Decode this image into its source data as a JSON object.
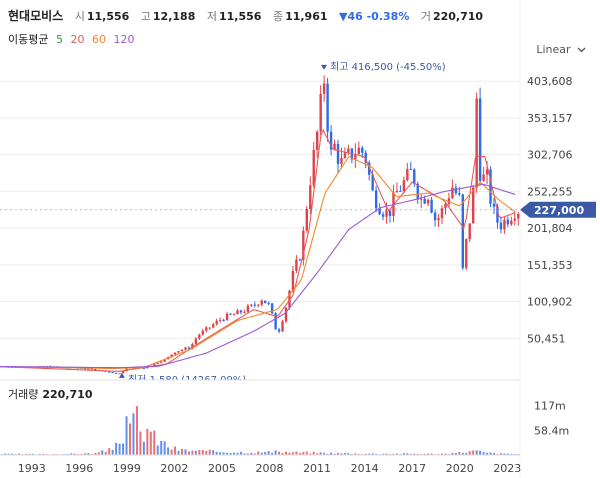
{
  "header": {
    "name": "현대모비스",
    "open_label": "시",
    "open": "11,556",
    "high_label": "고",
    "high": "12,188",
    "low_label": "저",
    "low": "11,556",
    "close_label": "종",
    "close": "11,961",
    "change": "▼46 -0.38%",
    "volume_label": "거",
    "volume": "220,710"
  },
  "ma_legend": {
    "label": "이동평균",
    "items": [
      {
        "text": "5",
        "color": "#2e9e3e"
      },
      {
        "text": "20",
        "color": "#e85a5a"
      },
      {
        "text": "60",
        "color": "#f08a2a"
      },
      {
        "text": "120",
        "color": "#9b59d6"
      }
    ]
  },
  "scale_button": "Linear",
  "volume_panel": {
    "label": "거래량",
    "value": "220,710"
  },
  "colors": {
    "up": "#e0424b",
    "down": "#2f6be6",
    "price_tag": "#3b5aa6",
    "annot": "#3b5aa6"
  },
  "chart_data": [
    {
      "type": "candlestick",
      "ylim": [
        0,
        430000
      ],
      "y_ticks": [
        50451,
        100902,
        151353,
        201804,
        252255,
        302706,
        353157,
        403608
      ],
      "y_tick_labels": [
        "50,451",
        "100,902",
        "151,353",
        "201,804",
        "252,255",
        "302,706",
        "353,157",
        "403,608"
      ],
      "x_ticks": [
        "1993",
        "1996",
        "1999",
        "2002",
        "2005",
        "2008",
        "2011",
        "2014",
        "2017",
        "2020",
        "2023"
      ],
      "x_tick_positions": [
        1993,
        1996,
        1999,
        2002,
        2005,
        2008,
        2011,
        2014,
        2017,
        2020,
        2023
      ],
      "x_range": [
        1991.0,
        2023.8
      ],
      "current_price": 227000,
      "current_price_label": "227,000",
      "max_annotation": {
        "text": "최고",
        "value_text": "416,500 (-45.50%)",
        "x": 2011.5,
        "y": 416500
      },
      "min_annotation": {
        "text": "최저",
        "value_text": "1,580 (14267.09%)",
        "x": 1998.5,
        "y": 1580
      },
      "price_series": [
        [
          1991.0,
          11800
        ],
        [
          1992.0,
          11000
        ],
        [
          1993.0,
          11300
        ],
        [
          1994.0,
          12000
        ],
        [
          1995.0,
          10500
        ],
        [
          1996.0,
          9800
        ],
        [
          1997.0,
          7500
        ],
        [
          1998.0,
          3500
        ],
        [
          1998.5,
          1580
        ],
        [
          1999.0,
          9000
        ],
        [
          1999.5,
          12000
        ],
        [
          2000.0,
          8500
        ],
        [
          2001.0,
          18000
        ],
        [
          2001.5,
          22000
        ],
        [
          2002.0,
          32000
        ],
        [
          2003.0,
          38000
        ],
        [
          2003.5,
          55000
        ],
        [
          2004.0,
          62000
        ],
        [
          2005.0,
          78000
        ],
        [
          2006.0,
          85000
        ],
        [
          2007.0,
          95000
        ],
        [
          2007.5,
          105000
        ],
        [
          2008.0,
          95000
        ],
        [
          2008.5,
          55000
        ],
        [
          2009.0,
          90000
        ],
        [
          2009.5,
          140000
        ],
        [
          2010.0,
          170000
        ],
        [
          2010.5,
          260000
        ],
        [
          2011.0,
          330000
        ],
        [
          2011.5,
          416500
        ],
        [
          2011.8,
          290000
        ],
        [
          2012.0,
          320000
        ],
        [
          2012.5,
          290000
        ],
        [
          2013.0,
          300000
        ],
        [
          2013.5,
          310000
        ],
        [
          2014.0,
          305000
        ],
        [
          2014.5,
          250000
        ],
        [
          2015.0,
          230000
        ],
        [
          2015.5,
          220000
        ],
        [
          2016.0,
          250000
        ],
        [
          2016.5,
          265000
        ],
        [
          2017.0,
          280000
        ],
        [
          2017.5,
          240000
        ],
        [
          2018.0,
          250000
        ],
        [
          2018.5,
          210000
        ],
        [
          2019.0,
          230000
        ],
        [
          2019.5,
          260000
        ],
        [
          2020.0,
          240000
        ],
        [
          2020.2,
          140000
        ],
        [
          2020.5,
          200000
        ],
        [
          2020.8,
          230000
        ],
        [
          2021.0,
          320000
        ],
        [
          2021.1,
          410000
        ],
        [
          2021.3,
          270000
        ],
        [
          2021.8,
          270000
        ],
        [
          2022.0,
          230000
        ],
        [
          2022.5,
          205000
        ],
        [
          2023.0,
          215000
        ],
        [
          2023.5,
          227000
        ]
      ],
      "ma_series": [
        {
          "name": "20",
          "color": "#e85a5a",
          "points": [
            [
              1991.0,
              11500
            ],
            [
              1998.5,
              5000
            ],
            [
              2001.5,
              15000
            ],
            [
              2004.0,
              50000
            ],
            [
              2007.0,
              90000
            ],
            [
              2008.5,
              80000
            ],
            [
              2009.5,
              110000
            ],
            [
              2010.5,
              200000
            ],
            [
              2011.3,
              340000
            ],
            [
              2012.0,
              310000
            ],
            [
              2014.0,
              300000
            ],
            [
              2015.5,
              225000
            ],
            [
              2017.0,
              265000
            ],
            [
              2019.0,
              240000
            ],
            [
              2020.3,
              200000
            ],
            [
              2021.0,
              300000
            ],
            [
              2021.6,
              300000
            ],
            [
              2022.5,
              215000
            ],
            [
              2023.5,
              223000
            ]
          ]
        },
        {
          "name": "60",
          "color": "#f08a2a",
          "points": [
            [
              1991.0,
              11600
            ],
            [
              1998.0,
              9000
            ],
            [
              2000.0,
              10000
            ],
            [
              2003.0,
              35000
            ],
            [
              2006.0,
              75000
            ],
            [
              2008.5,
              90000
            ],
            [
              2010.0,
              130000
            ],
            [
              2011.5,
              250000
            ],
            [
              2013.0,
              300000
            ],
            [
              2014.5,
              285000
            ],
            [
              2016.0,
              245000
            ],
            [
              2018.0,
              250000
            ],
            [
              2020.0,
              232000
            ],
            [
              2021.3,
              265000
            ],
            [
              2022.5,
              240000
            ],
            [
              2023.5,
              224000
            ]
          ]
        },
        {
          "name": "120",
          "color": "#9b59d6",
          "points": [
            [
              1991.0,
              11700
            ],
            [
              1998.5,
              10000
            ],
            [
              2001.0,
              12000
            ],
            [
              2004.0,
              30000
            ],
            [
              2007.0,
              60000
            ],
            [
              2009.0,
              85000
            ],
            [
              2011.0,
              140000
            ],
            [
              2013.0,
              200000
            ],
            [
              2015.0,
              230000
            ],
            [
              2017.0,
              240000
            ],
            [
              2019.0,
              252000
            ],
            [
              2021.5,
              262000
            ],
            [
              2023.5,
              248000
            ]
          ]
        }
      ]
    },
    {
      "type": "bar",
      "title": "거래량",
      "y_ticks": [
        58400000,
        117000000
      ],
      "y_tick_labels": [
        "58.4m",
        "117m"
      ],
      "volume_series": [
        [
          1991.5,
          3000000
        ],
        [
          1993.0,
          2500000
        ],
        [
          1995.0,
          3000000
        ],
        [
          1997.0,
          5000000
        ],
        [
          1998.0,
          15000000
        ],
        [
          1998.8,
          60000000
        ],
        [
          1999.1,
          90000000
        ],
        [
          1999.3,
          70000000
        ],
        [
          1999.6,
          117000000
        ],
        [
          1999.9,
          50000000
        ],
        [
          2000.3,
          80000000
        ],
        [
          2000.6,
          60000000
        ],
        [
          2000.9,
          40000000
        ],
        [
          2001.3,
          35000000
        ],
        [
          2001.8,
          20000000
        ],
        [
          2002.5,
          14000000
        ],
        [
          2003.5,
          12000000
        ],
        [
          2004.5,
          10000000
        ],
        [
          2005.5,
          9000000
        ],
        [
          2006.5,
          8000000
        ],
        [
          2007.5,
          8000000
        ],
        [
          2008.5,
          9000000
        ],
        [
          2009.5,
          8000000
        ],
        [
          2010.5,
          7000000
        ],
        [
          2011.5,
          6000000
        ],
        [
          2012.5,
          5000000
        ],
        [
          2014.0,
          4000000
        ],
        [
          2016.0,
          4000000
        ],
        [
          2018.0,
          3500000
        ],
        [
          2019.5,
          4000000
        ],
        [
          2020.3,
          9000000
        ],
        [
          2021.1,
          12000000
        ],
        [
          2021.5,
          7000000
        ],
        [
          2022.5,
          4000000
        ],
        [
          2023.5,
          3000000
        ]
      ]
    }
  ]
}
